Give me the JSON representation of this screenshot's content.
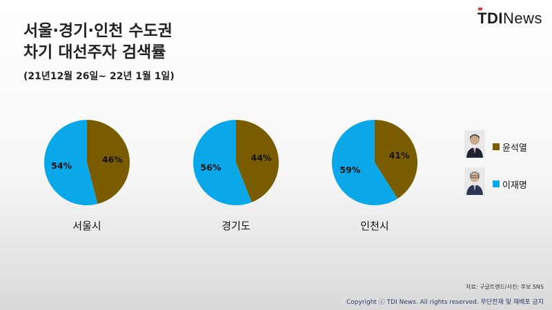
{
  "brand": {
    "bold": "TDI",
    "regular": "News",
    "accent": "#e53935"
  },
  "title_lines": [
    "서울·경기·인천 수도권",
    "차기 대선주자 검색률"
  ],
  "subtitle": "(21년12월 26일~ 22년 1월 1일)",
  "source": "자료: 구글트렌드/사진: 후보 SNS",
  "copyright": "Copyright ⓒ TDI News. All rights reserved. 무단전재 및 재배포 금지",
  "legend": [
    {
      "name": "윤석열",
      "color": "#7a5c00",
      "avatar": "person-photo-icon"
    },
    {
      "name": "이재명",
      "color": "#0aa8e8",
      "avatar": "person-photo-icon"
    }
  ],
  "chart_data": [
    {
      "type": "pie",
      "title": "서울시",
      "series": [
        {
          "name": "윤석열",
          "value": 46
        },
        {
          "name": "이재명",
          "value": 54
        }
      ]
    },
    {
      "type": "pie",
      "title": "경기도",
      "series": [
        {
          "name": "윤석열",
          "value": 44
        },
        {
          "name": "이재명",
          "value": 56
        }
      ]
    },
    {
      "type": "pie",
      "title": "인천시",
      "series": [
        {
          "name": "윤석열",
          "value": 41
        },
        {
          "name": "이재명",
          "value": 59
        }
      ]
    }
  ]
}
